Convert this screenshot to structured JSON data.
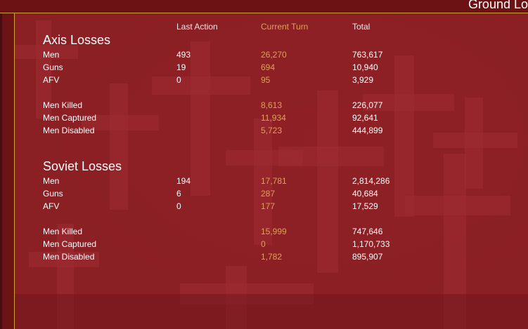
{
  "window": {
    "title": "Ground Lo"
  },
  "columns": {
    "last_action": "Last Action",
    "current_turn": "Current Turn",
    "total": "Total"
  },
  "axis": {
    "title": "Axis Losses",
    "rows": [
      {
        "label": "Men",
        "last": "493",
        "current": "26,270",
        "total": "763,617"
      },
      {
        "label": "Guns",
        "last": "19",
        "current": "694",
        "total": "10,940"
      },
      {
        "label": "AFV",
        "last": "0",
        "current": "95",
        "total": "3,929"
      }
    ],
    "casualties": [
      {
        "label": "Men Killed",
        "current": "8,613",
        "total": "226,077"
      },
      {
        "label": "Men Captured",
        "current": "11,934",
        "total": "92,641"
      },
      {
        "label": "Men Disabled",
        "current": "5,723",
        "total": "444,899"
      }
    ]
  },
  "soviet": {
    "title": "Soviet Losses",
    "rows": [
      {
        "label": "Men",
        "last": "194",
        "current": "17,781",
        "total": "2,814,286"
      },
      {
        "label": "Guns",
        "last": "6",
        "current": "287",
        "total": "40,684"
      },
      {
        "label": "AFV",
        "last": "0",
        "current": "177",
        "total": "17,529"
      }
    ],
    "casualties": [
      {
        "label": "Men Killed",
        "current": "15,999",
        "total": "747,646"
      },
      {
        "label": "Men Captured",
        "current": "0",
        "total": "1,170,733"
      },
      {
        "label": "Men Disabled",
        "current": "1,782",
        "total": "895,907"
      }
    ]
  },
  "colors": {
    "background": "#8a1f24",
    "current_turn": "#e0a05a",
    "border": "#c9a33a"
  }
}
